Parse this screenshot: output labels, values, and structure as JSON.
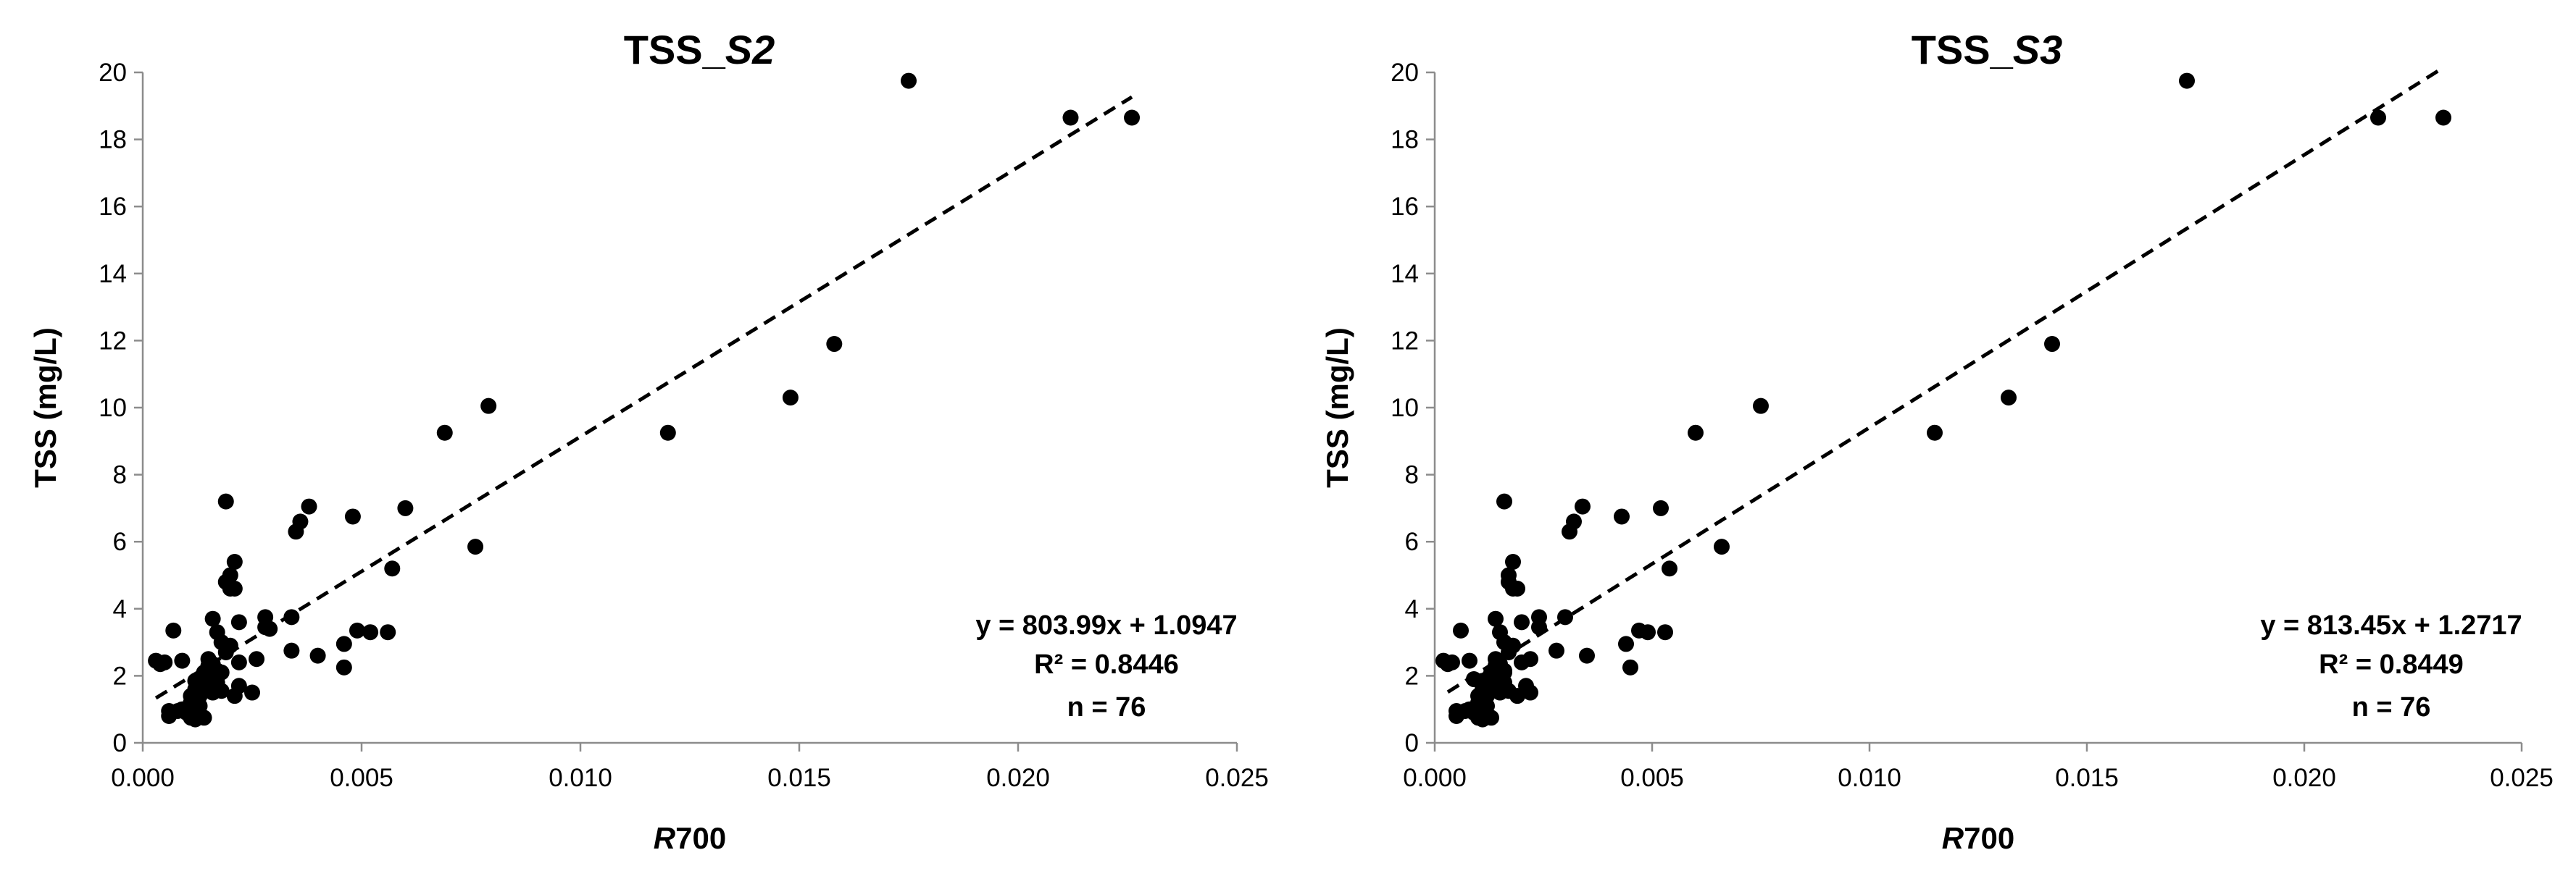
{
  "chart_data": [
    {
      "type": "scatter",
      "title": "TSS_S2",
      "title_parts": [
        "TSS_",
        "S2"
      ],
      "xlabel": "R700",
      "ylabel": "TSS (mg/L)",
      "xlim": [
        0,
        0.025
      ],
      "ylim": [
        0,
        20
      ],
      "xticks": [
        "0.000",
        "0.005",
        "0.010",
        "0.015",
        "0.020",
        "0.025"
      ],
      "yticks": [
        "0",
        "2",
        "4",
        "6",
        "8",
        "10",
        "12",
        "14",
        "16",
        "18",
        "20"
      ],
      "grid": false,
      "legend": "none",
      "marker_color": "#000000",
      "trendline": {
        "slope": 803.99,
        "intercept": 1.0947,
        "style": "dashed",
        "x_range": [
          0.0003,
          0.0226
        ]
      },
      "annotations": [
        "y = 803.99x + 1.0947",
        "R² = 0.8446",
        "n = 76"
      ],
      "points": [
        [
          0.0003,
          2.45
        ],
        [
          0.0004,
          2.35
        ],
        [
          0.0005,
          2.4
        ],
        [
          0.0006,
          0.8
        ],
        [
          0.0006,
          0.95
        ],
        [
          0.0007,
          3.35
        ],
        [
          0.0008,
          0.95
        ],
        [
          0.0009,
          2.45
        ],
        [
          0.0009,
          1.0
        ],
        [
          0.001,
          0.9
        ],
        [
          0.0011,
          1.4
        ],
        [
          0.0011,
          0.75
        ],
        [
          0.0012,
          1.6
        ],
        [
          0.0012,
          1.85
        ],
        [
          0.0012,
          0.7
        ],
        [
          0.0013,
          1.9
        ],
        [
          0.0013,
          1.4
        ],
        [
          0.0013,
          0.85
        ],
        [
          0.0014,
          2.1
        ],
        [
          0.0014,
          1.55
        ],
        [
          0.0014,
          0.75
        ],
        [
          0.0015,
          2.3
        ],
        [
          0.0015,
          1.7
        ],
        [
          0.0016,
          3.7
        ],
        [
          0.0016,
          2.0
        ],
        [
          0.0016,
          1.5
        ],
        [
          0.0017,
          3.3
        ],
        [
          0.0017,
          2.15
        ],
        [
          0.0017,
          1.8
        ],
        [
          0.0018,
          3.0
        ],
        [
          0.0018,
          2.1
        ],
        [
          0.0019,
          7.2
        ],
        [
          0.0019,
          4.8
        ],
        [
          0.0019,
          2.7
        ],
        [
          0.002,
          5.0
        ],
        [
          0.002,
          4.6
        ],
        [
          0.002,
          2.9
        ],
        [
          0.0021,
          5.4
        ],
        [
          0.0021,
          4.6
        ],
        [
          0.0021,
          1.4
        ],
        [
          0.0022,
          3.6
        ],
        [
          0.0022,
          2.4
        ],
        [
          0.0022,
          1.7
        ],
        [
          0.0025,
          1.5
        ],
        [
          0.0026,
          2.5
        ],
        [
          0.0028,
          3.75
        ],
        [
          0.0028,
          3.45
        ],
        [
          0.0029,
          3.4
        ],
        [
          0.0034,
          3.75
        ],
        [
          0.0034,
          2.75
        ],
        [
          0.0035,
          6.3
        ],
        [
          0.0036,
          6.6
        ],
        [
          0.0038,
          7.05
        ],
        [
          0.004,
          2.6
        ],
        [
          0.0046,
          2.95
        ],
        [
          0.0046,
          2.25
        ],
        [
          0.0048,
          6.75
        ],
        [
          0.0049,
          3.35
        ],
        [
          0.0052,
          3.3
        ],
        [
          0.0056,
          3.3
        ],
        [
          0.0057,
          5.2
        ],
        [
          0.006,
          7.0
        ],
        [
          0.0069,
          9.25
        ],
        [
          0.0076,
          5.85
        ],
        [
          0.0079,
          10.05
        ],
        [
          0.012,
          9.25
        ],
        [
          0.0148,
          10.3
        ],
        [
          0.0158,
          11.9
        ],
        [
          0.0175,
          19.75
        ],
        [
          0.0212,
          18.65
        ],
        [
          0.0226,
          18.65
        ],
        [
          0.0015,
          2.5
        ],
        [
          0.0011,
          1.2
        ],
        [
          0.0013,
          1.1
        ],
        [
          0.0018,
          1.55
        ],
        [
          0.0016,
          2.35
        ]
      ]
    },
    {
      "type": "scatter",
      "title": "TSS_S3",
      "title_parts": [
        "TSS_",
        "S3"
      ],
      "xlabel": "R700",
      "ylabel": "TSS (mg/L)",
      "xlim": [
        0,
        0.025
      ],
      "ylim": [
        0,
        20
      ],
      "xticks": [
        "0.000",
        "0.005",
        "0.010",
        "0.015",
        "0.020",
        "0.025"
      ],
      "yticks": [
        "0",
        "2",
        "4",
        "6",
        "8",
        "10",
        "12",
        "14",
        "16",
        "18",
        "20"
      ],
      "grid": false,
      "legend": "none",
      "marker_color": "#000000",
      "trendline": {
        "slope": 813.45,
        "intercept": 1.2717,
        "style": "dashed",
        "x_range": [
          0.0003,
          0.0232
        ]
      },
      "annotations": [
        "y = 813.45x + 1.2717",
        "R² = 0.8449",
        "n = 76"
      ],
      "points": [
        [
          0.0002,
          2.45
        ],
        [
          0.0003,
          2.35
        ],
        [
          0.0004,
          2.4
        ],
        [
          0.0005,
          0.8
        ],
        [
          0.0005,
          0.95
        ],
        [
          0.0006,
          3.35
        ],
        [
          0.0007,
          0.95
        ],
        [
          0.0008,
          2.45
        ],
        [
          0.0008,
          1.0
        ],
        [
          0.0009,
          0.9
        ],
        [
          0.001,
          1.4
        ],
        [
          0.001,
          0.75
        ],
        [
          0.0011,
          1.6
        ],
        [
          0.0011,
          1.85
        ],
        [
          0.0011,
          0.7
        ],
        [
          0.0012,
          1.9
        ],
        [
          0.0012,
          1.4
        ],
        [
          0.0012,
          0.85
        ],
        [
          0.0013,
          2.1
        ],
        [
          0.0013,
          1.55
        ],
        [
          0.0013,
          0.75
        ],
        [
          0.0014,
          2.3
        ],
        [
          0.0014,
          1.7
        ],
        [
          0.0014,
          3.7
        ],
        [
          0.0015,
          2.0
        ],
        [
          0.0015,
          1.5
        ],
        [
          0.0015,
          3.3
        ],
        [
          0.0016,
          2.15
        ],
        [
          0.0016,
          1.8
        ],
        [
          0.0016,
          3.0
        ],
        [
          0.0016,
          2.1
        ],
        [
          0.0016,
          7.2
        ],
        [
          0.0017,
          4.8
        ],
        [
          0.0017,
          2.7
        ],
        [
          0.0017,
          5.0
        ],
        [
          0.0018,
          4.6
        ],
        [
          0.0018,
          2.9
        ],
        [
          0.0018,
          5.4
        ],
        [
          0.0019,
          4.6
        ],
        [
          0.0019,
          1.4
        ],
        [
          0.002,
          3.6
        ],
        [
          0.002,
          2.4
        ],
        [
          0.0021,
          1.7
        ],
        [
          0.0022,
          1.5
        ],
        [
          0.0022,
          2.5
        ],
        [
          0.0024,
          3.75
        ],
        [
          0.0024,
          3.45
        ],
        [
          0.0028,
          2.75
        ],
        [
          0.003,
          3.75
        ],
        [
          0.0031,
          6.3
        ],
        [
          0.0032,
          6.6
        ],
        [
          0.0034,
          7.05
        ],
        [
          0.0035,
          2.6
        ],
        [
          0.0043,
          6.75
        ],
        [
          0.0044,
          2.95
        ],
        [
          0.0045,
          2.25
        ],
        [
          0.0047,
          3.35
        ],
        [
          0.0049,
          3.3
        ],
        [
          0.0052,
          7.0
        ],
        [
          0.0053,
          3.3
        ],
        [
          0.0054,
          5.2
        ],
        [
          0.006,
          9.25
        ],
        [
          0.0066,
          5.85
        ],
        [
          0.0075,
          10.05
        ],
        [
          0.0115,
          9.25
        ],
        [
          0.0132,
          10.3
        ],
        [
          0.0142,
          11.9
        ],
        [
          0.0173,
          19.75
        ],
        [
          0.0217,
          18.65
        ],
        [
          0.0232,
          18.65
        ],
        [
          0.0014,
          2.5
        ],
        [
          0.001,
          1.2
        ],
        [
          0.0012,
          1.1
        ],
        [
          0.0017,
          1.55
        ],
        [
          0.0015,
          2.35
        ],
        [
          0.0009,
          1.9
        ]
      ]
    }
  ]
}
